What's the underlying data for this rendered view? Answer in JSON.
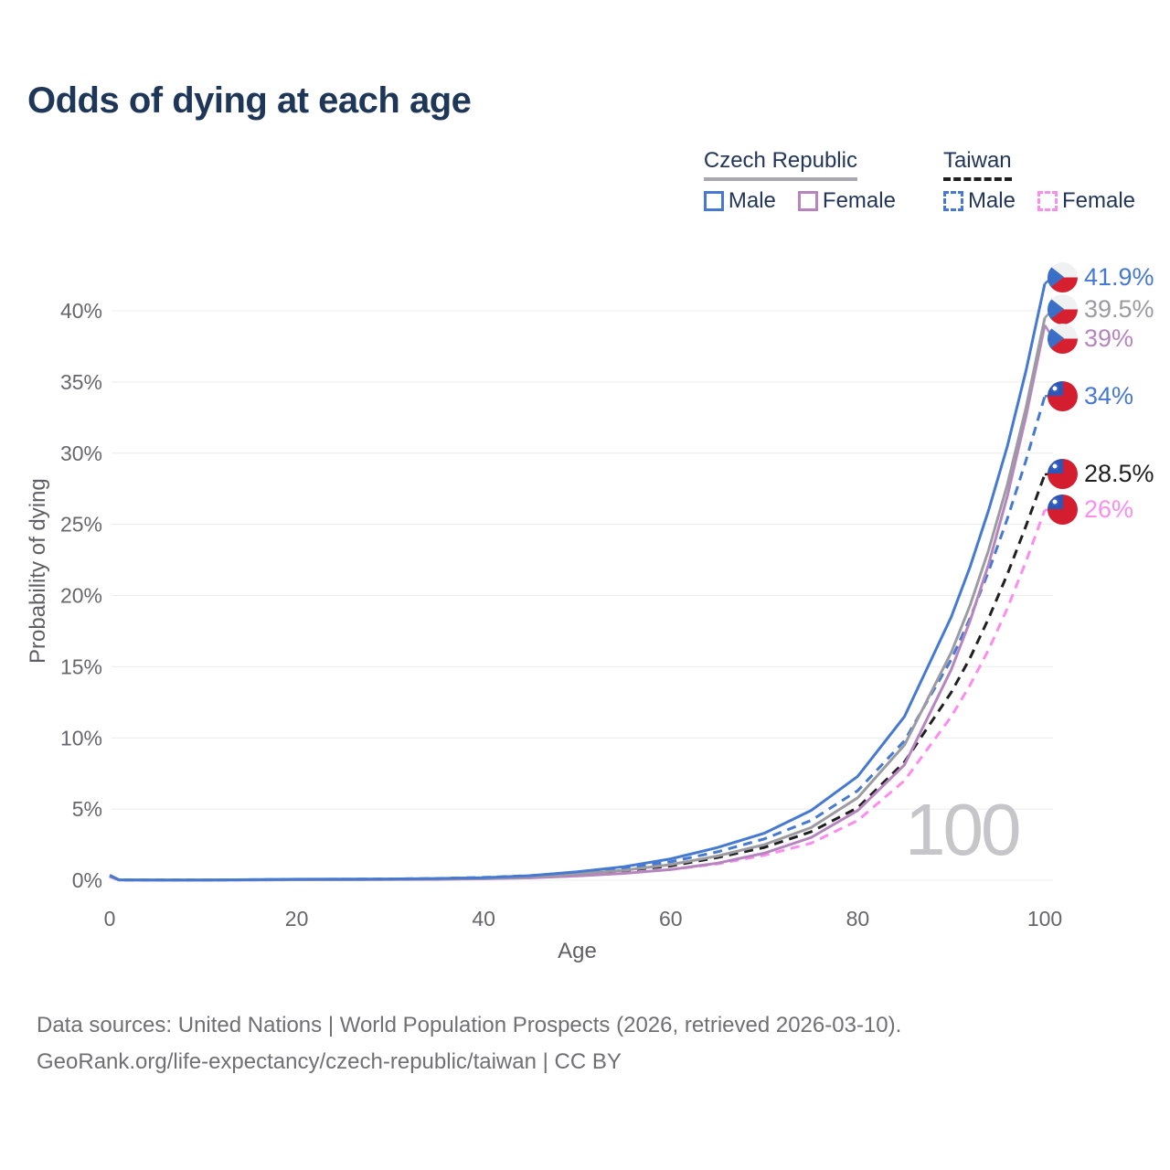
{
  "title": "Odds of dying at each age",
  "legend": {
    "groups": [
      {
        "key": "cz",
        "title": "Czech Republic",
        "underline_color": "#a7a7ad",
        "underline_style": "solid",
        "items": [
          {
            "key": "cz-male",
            "label": "Male",
            "color": "#4579d2",
            "dash": false
          },
          {
            "key": "cz-female",
            "label": "Female",
            "color": "#b685bf",
            "dash": false
          }
        ]
      },
      {
        "key": "tw",
        "title": "Taiwan",
        "underline_color": "#1f1f1f",
        "underline_style": "dashed",
        "items": [
          {
            "key": "tw-male",
            "label": "Male",
            "color": "#4579d2",
            "dash": true
          },
          {
            "key": "tw-female",
            "label": "Female",
            "color": "#fd8cef",
            "dash": true
          }
        ]
      }
    ]
  },
  "watermark": "100",
  "footer": {
    "line1": "Data sources: United Nations | World Population Prospects (2026, retrieved 2026-03-10).",
    "line2": "GeoRank.org/life-expectancy/czech-republic/taiwan | CC BY"
  },
  "chart_data": {
    "type": "line",
    "title": "Odds of dying at each age",
    "xlabel": "Age",
    "ylabel": "Probability of dying",
    "xlim": [
      0,
      100
    ],
    "ylim": [
      0,
      43
    ],
    "xticks": [
      0,
      20,
      40,
      60,
      80,
      100
    ],
    "yticks": [
      0,
      5,
      10,
      15,
      20,
      25,
      30,
      35,
      40
    ],
    "grid": "horizontal",
    "legend_position": "top-right",
    "x_shared": [
      0,
      1,
      5,
      10,
      15,
      20,
      25,
      30,
      35,
      40,
      45,
      50,
      55,
      60,
      65,
      70,
      75,
      80,
      85,
      90,
      92,
      94,
      96,
      98,
      100
    ],
    "series": [
      {
        "key": "cz-male",
        "name": "Czech Republic Male",
        "color": "#4579d2",
        "dash": false,
        "flag": "cz",
        "end_label": "41.9%",
        "x": [
          0,
          1,
          5,
          10,
          15,
          20,
          25,
          30,
          35,
          40,
          45,
          50,
          55,
          60,
          65,
          70,
          75,
          80,
          85,
          90,
          92,
          94,
          96,
          98,
          100
        ],
        "y": [
          0.35,
          0.03,
          0.01,
          0.01,
          0.04,
          0.07,
          0.08,
          0.09,
          0.12,
          0.18,
          0.32,
          0.6,
          0.95,
          1.5,
          2.3,
          3.3,
          4.9,
          7.3,
          11.5,
          18.5,
          22.0,
          26.0,
          30.5,
          35.8,
          41.9
        ]
      },
      {
        "key": "cz-both",
        "name": "Czech Republic Total",
        "color": "#9b9ba1",
        "dash": false,
        "flag": "cz",
        "end_label": "39.5%",
        "x": [
          0,
          1,
          5,
          10,
          15,
          20,
          25,
          30,
          35,
          40,
          45,
          50,
          55,
          60,
          65,
          70,
          75,
          80,
          85,
          90,
          92,
          94,
          96,
          98,
          100
        ],
        "y": [
          0.3,
          0.025,
          0.01,
          0.01,
          0.03,
          0.05,
          0.06,
          0.07,
          0.09,
          0.14,
          0.24,
          0.45,
          0.7,
          1.1,
          1.7,
          2.5,
          3.7,
          5.8,
          9.5,
          16.0,
          19.3,
          23.2,
          27.8,
          33.2,
          39.5
        ]
      },
      {
        "key": "cz-female",
        "name": "Czech Republic Female",
        "color": "#b685bf",
        "dash": false,
        "flag": "cz",
        "end_label": "39%",
        "x": [
          0,
          1,
          5,
          10,
          15,
          20,
          25,
          30,
          35,
          40,
          45,
          50,
          55,
          60,
          65,
          70,
          75,
          80,
          85,
          90,
          92,
          94,
          96,
          98,
          100
        ],
        "y": [
          0.28,
          0.02,
          0.008,
          0.008,
          0.02,
          0.03,
          0.035,
          0.045,
          0.06,
          0.1,
          0.17,
          0.3,
          0.48,
          0.75,
          1.2,
          1.9,
          3.0,
          4.9,
          8.1,
          14.8,
          18.2,
          22.2,
          27.0,
          32.6,
          39.0
        ]
      },
      {
        "key": "tw-male",
        "name": "Taiwan Male",
        "color": "#4579d2",
        "dash": true,
        "flag": "tw",
        "end_label": "34%",
        "x": [
          0,
          1,
          5,
          10,
          15,
          20,
          25,
          30,
          35,
          40,
          45,
          50,
          55,
          60,
          65,
          70,
          75,
          80,
          85,
          90,
          92,
          94,
          96,
          98,
          100
        ],
        "y": [
          0.3,
          0.025,
          0.01,
          0.012,
          0.04,
          0.06,
          0.07,
          0.09,
          0.13,
          0.2,
          0.33,
          0.55,
          0.85,
          1.3,
          2.0,
          2.9,
          4.2,
          6.3,
          9.8,
          15.5,
          18.4,
          21.7,
          25.4,
          29.5,
          34.0
        ]
      },
      {
        "key": "tw-both",
        "name": "Taiwan Total",
        "color": "#1f1f1f",
        "dash": true,
        "flag": "tw",
        "end_label": "28.5%",
        "x": [
          0,
          1,
          5,
          10,
          15,
          20,
          25,
          30,
          35,
          40,
          45,
          50,
          55,
          60,
          65,
          70,
          75,
          80,
          85,
          90,
          92,
          94,
          96,
          98,
          100
        ],
        "y": [
          0.28,
          0.02,
          0.01,
          0.01,
          0.03,
          0.045,
          0.055,
          0.07,
          0.1,
          0.16,
          0.26,
          0.43,
          0.68,
          1.0,
          1.6,
          2.3,
          3.4,
          5.1,
          8.3,
          13.2,
          15.6,
          18.4,
          21.5,
          24.9,
          28.5
        ]
      },
      {
        "key": "tw-female",
        "name": "Taiwan Female",
        "color": "#fd8cef",
        "dash": true,
        "flag": "tw",
        "end_label": "26%",
        "x": [
          0,
          1,
          5,
          10,
          15,
          20,
          25,
          30,
          35,
          40,
          45,
          50,
          55,
          60,
          65,
          70,
          75,
          80,
          85,
          90,
          92,
          94,
          96,
          98,
          100
        ],
        "y": [
          0.25,
          0.02,
          0.008,
          0.008,
          0.02,
          0.03,
          0.04,
          0.05,
          0.07,
          0.11,
          0.18,
          0.3,
          0.5,
          0.75,
          1.15,
          1.75,
          2.6,
          4.2,
          7.0,
          11.5,
          13.7,
          16.2,
          19.1,
          22.4,
          26.0
        ]
      }
    ]
  }
}
